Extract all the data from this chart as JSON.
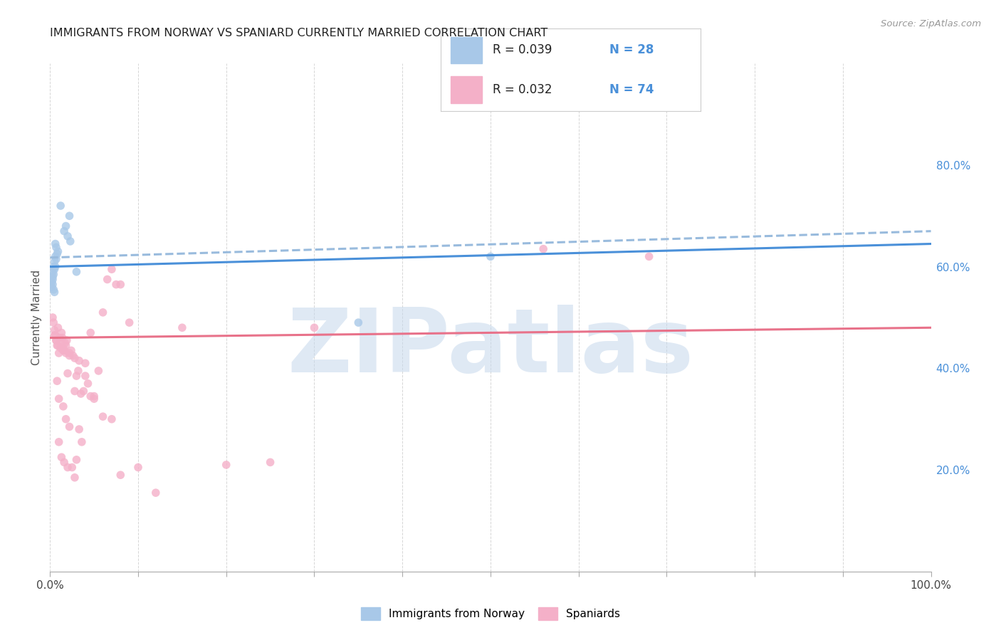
{
  "title": "IMMIGRANTS FROM NORWAY VS SPANIARD CURRENTLY MARRIED CORRELATION CHART",
  "source": "Source: ZipAtlas.com",
  "ylabel": "Currently Married",
  "right_yticks": [
    "20.0%",
    "40.0%",
    "60.0%",
    "80.0%"
  ],
  "right_ytick_vals": [
    0.2,
    0.4,
    0.6,
    0.8
  ],
  "legend_entries": [
    {
      "label_r": "R = 0.039",
      "label_n": "N = 28",
      "color": "#a8c8e8"
    },
    {
      "label_r": "R = 0.032",
      "label_n": "N = 74",
      "color": "#f4b0c8"
    }
  ],
  "norway_scatter_x": [
    0.012,
    0.022,
    0.018,
    0.016,
    0.02,
    0.023,
    0.006,
    0.007,
    0.009,
    0.008,
    0.006,
    0.007,
    0.005,
    0.006,
    0.004,
    0.005,
    0.003,
    0.004,
    0.003,
    0.003,
    0.002,
    0.003,
    0.03,
    0.002,
    0.004,
    0.005,
    0.35,
    0.5
  ],
  "norway_scatter_y": [
    0.72,
    0.7,
    0.68,
    0.67,
    0.66,
    0.65,
    0.645,
    0.638,
    0.63,
    0.625,
    0.62,
    0.615,
    0.61,
    0.6,
    0.6,
    0.595,
    0.59,
    0.585,
    0.58,
    0.575,
    0.57,
    0.565,
    0.59,
    0.56,
    0.555,
    0.55,
    0.49,
    0.62
  ],
  "spain_scatter_x": [
    0.003,
    0.004,
    0.005,
    0.006,
    0.007,
    0.008,
    0.009,
    0.01,
    0.011,
    0.012,
    0.013,
    0.014,
    0.015,
    0.016,
    0.017,
    0.018,
    0.019,
    0.02,
    0.022,
    0.024,
    0.026,
    0.028,
    0.03,
    0.032,
    0.035,
    0.038,
    0.04,
    0.043,
    0.046,
    0.05,
    0.055,
    0.06,
    0.065,
    0.07,
    0.075,
    0.08,
    0.09,
    0.1,
    0.12,
    0.15,
    0.2,
    0.25,
    0.01,
    0.013,
    0.016,
    0.02,
    0.025,
    0.03,
    0.036,
    0.008,
    0.01,
    0.015,
    0.018,
    0.022,
    0.028,
    0.033,
    0.046,
    0.005,
    0.007,
    0.009,
    0.012,
    0.015,
    0.018,
    0.022,
    0.028,
    0.033,
    0.04,
    0.05,
    0.06,
    0.07,
    0.08,
    0.3,
    0.56,
    0.68
  ],
  "spain_scatter_y": [
    0.5,
    0.49,
    0.475,
    0.465,
    0.455,
    0.445,
    0.48,
    0.43,
    0.46,
    0.45,
    0.47,
    0.46,
    0.44,
    0.435,
    0.45,
    0.445,
    0.455,
    0.39,
    0.43,
    0.435,
    0.425,
    0.355,
    0.385,
    0.395,
    0.35,
    0.355,
    0.385,
    0.37,
    0.345,
    0.34,
    0.395,
    0.51,
    0.575,
    0.595,
    0.565,
    0.565,
    0.49,
    0.205,
    0.155,
    0.48,
    0.21,
    0.215,
    0.255,
    0.225,
    0.215,
    0.205,
    0.205,
    0.22,
    0.255,
    0.375,
    0.34,
    0.325,
    0.3,
    0.285,
    0.185,
    0.28,
    0.47,
    0.465,
    0.455,
    0.445,
    0.44,
    0.435,
    0.43,
    0.425,
    0.42,
    0.415,
    0.41,
    0.345,
    0.305,
    0.3,
    0.19,
    0.48,
    0.635,
    0.62
  ],
  "norway_solid_line_x": [
    0.0,
    1.0
  ],
  "norway_solid_line_y": [
    0.6,
    0.645
  ],
  "norway_dash_line_x": [
    0.0,
    1.0
  ],
  "norway_dash_line_y": [
    0.618,
    0.67
  ],
  "spain_solid_line_x": [
    0.0,
    1.0
  ],
  "spain_solid_line_y": [
    0.46,
    0.48
  ],
  "norway_solid_color": "#4a90d9",
  "norway_dash_color": "#99bbdd",
  "spain_solid_color": "#e8728a",
  "line_width": 2.2,
  "scatter_norway_color": "#a8c8e8",
  "scatter_spain_color": "#f4b0c8",
  "scatter_size": 70,
  "scatter_alpha": 0.8,
  "xlim": [
    0.0,
    1.0
  ],
  "ylim": [
    0.0,
    1.0
  ],
  "background_color": "#ffffff",
  "grid_color": "#cccccc",
  "watermark_text": "ZIPatlas",
  "watermark_color": "#c5d8ec",
  "watermark_fontsize": 90
}
